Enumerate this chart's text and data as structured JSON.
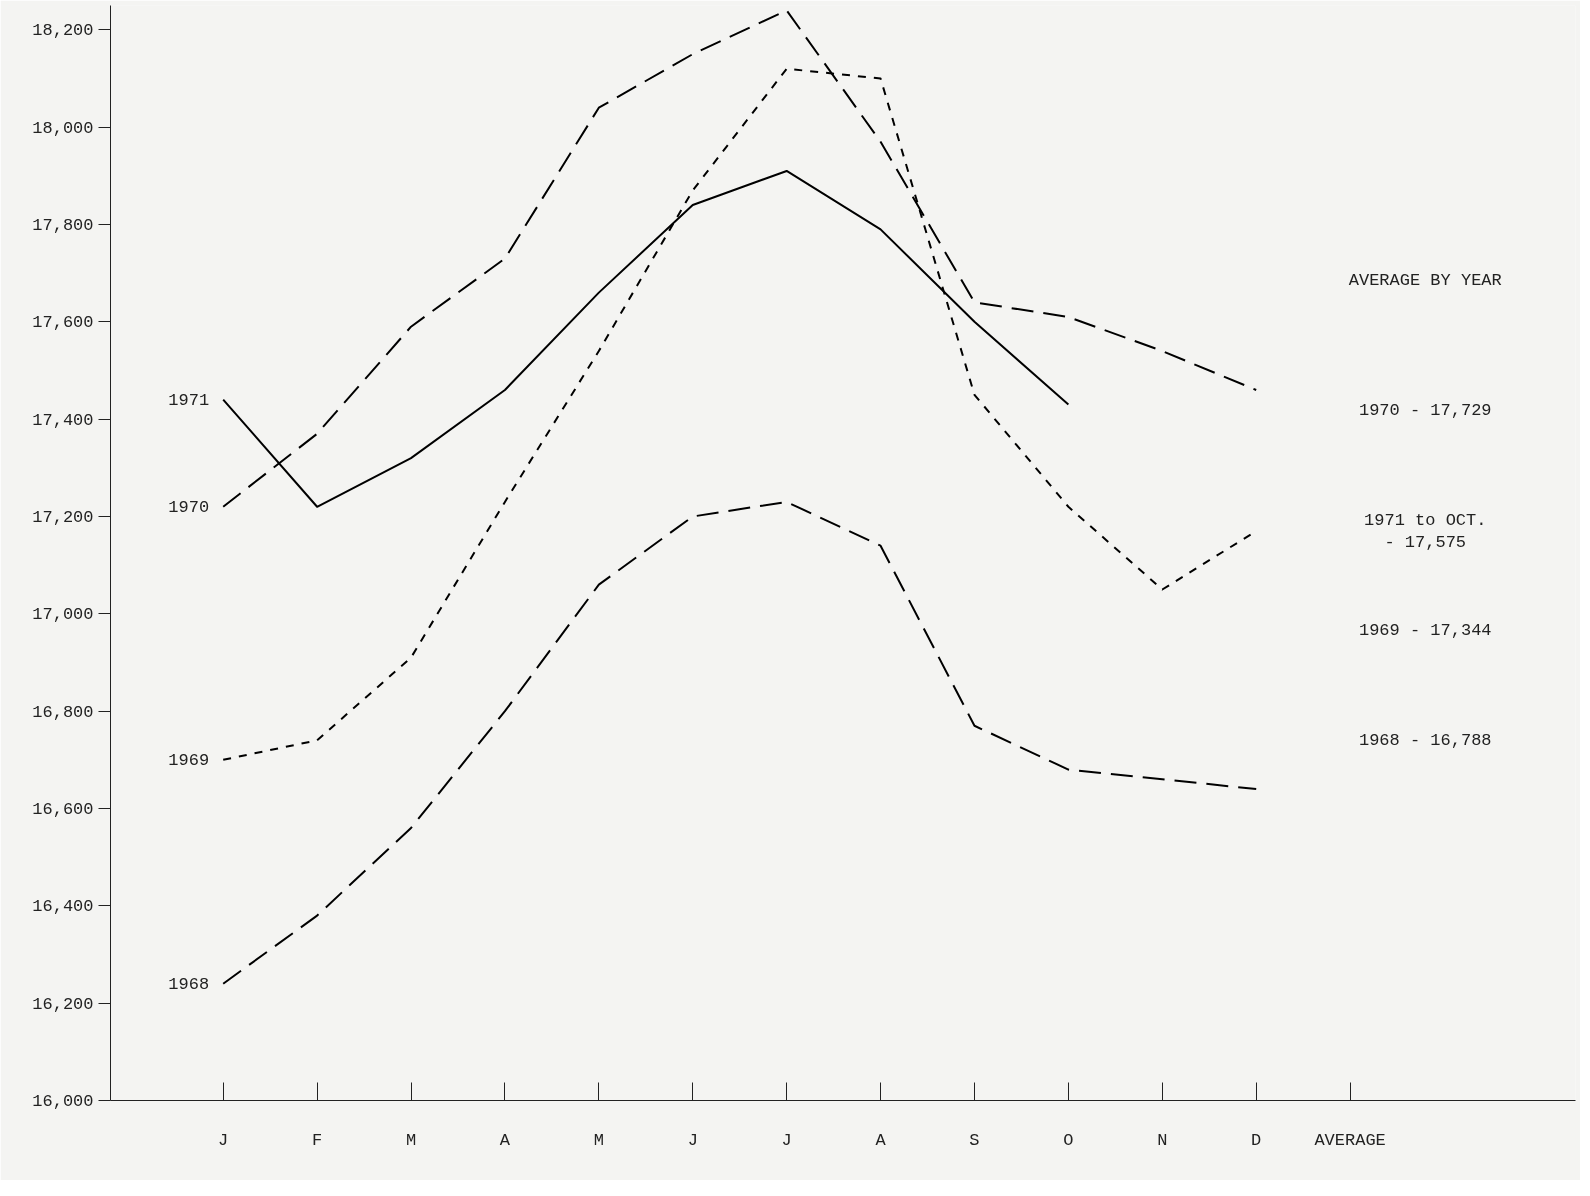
{
  "chart_data": {
    "type": "line",
    "categories": [
      "J",
      "F",
      "M",
      "A",
      "M",
      "J",
      "J",
      "A",
      "S",
      "O",
      "N",
      "D",
      "AVERAGE"
    ],
    "ylim": [
      16000,
      18250
    ],
    "yticks": [
      {
        "value": 16000,
        "label": "16,000"
      },
      {
        "value": 16200,
        "label": "16,200"
      },
      {
        "value": 16400,
        "label": "16,400"
      },
      {
        "value": 16600,
        "label": "16,600"
      },
      {
        "value": 16800,
        "label": "16,800"
      },
      {
        "value": 17000,
        "label": "17,000"
      },
      {
        "value": 17200,
        "label": "17,200"
      },
      {
        "value": 17400,
        "label": "17,400"
      },
      {
        "value": 17600,
        "label": "17,600"
      },
      {
        "value": 17800,
        "label": "17,800"
      },
      {
        "value": 18000,
        "label": "18,000"
      },
      {
        "value": 18200,
        "label": "18,200"
      }
    ],
    "grid": false,
    "series": [
      {
        "name": "1971",
        "color": "#000000",
        "line_style": "solid",
        "values": [
          17440,
          17220,
          17320,
          17460,
          17660,
          17840,
          17910,
          17790,
          17600,
          17430,
          null,
          null,
          null
        ]
      },
      {
        "name": "1970",
        "color": "#000000",
        "line_style": "dashed",
        "values": [
          17220,
          17370,
          17590,
          17730,
          18040,
          18150,
          18240,
          17970,
          17640,
          17610,
          17540,
          17460,
          null
        ]
      },
      {
        "name": "1969",
        "color": "#000000",
        "line_style": "dotted",
        "values": [
          16700,
          16740,
          16910,
          17230,
          17540,
          17870,
          18120,
          18100,
          17450,
          17220,
          17050,
          17170,
          null
        ]
      },
      {
        "name": "1968",
        "color": "#000000",
        "line_style": "dashed",
        "values": [
          16240,
          16380,
          16560,
          16800,
          17060,
          17200,
          17230,
          17140,
          16770,
          16680,
          16660,
          16640,
          null
        ]
      }
    ],
    "annotations": [
      "AVERAGE BY YEAR",
      "1970 - 17,729",
      "1971 to OCT.\n- 17,575",
      "1969 - 17,344",
      "1968 - 16,788"
    ]
  }
}
